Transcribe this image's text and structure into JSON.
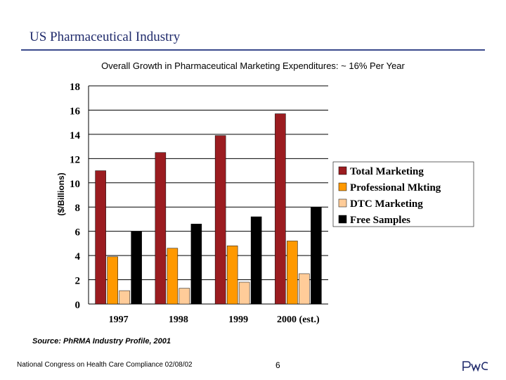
{
  "slide": {
    "title": "US Pharmaceutical Industry",
    "source": "Source:  PhRMA Industry Profile, 2001",
    "footer": "National Congress on Health Care Compliance 02/08/02",
    "page_number": "6",
    "logo": "PwC"
  },
  "colors": {
    "total_marketing": "#9b1c20",
    "professional_mkting": "#ff9900",
    "dtc_marketing": "#ffcc99",
    "free_samples": "#000000"
  },
  "chart_data": {
    "type": "bar",
    "title": "Overall Growth in Pharmaceutical Marketing Expenditures: ~ 16% Per Year",
    "ylabel": "($/Billions)",
    "xlabel": "",
    "ylim": [
      0,
      18
    ],
    "yticks": [
      0,
      2,
      4,
      6,
      8,
      10,
      12,
      14,
      16,
      18
    ],
    "grid": true,
    "legend_position": "right",
    "categories": [
      "1997",
      "1998",
      "1999",
      "2000 (est.)"
    ],
    "series": [
      {
        "name": "Total Marketing",
        "color": "#9b1c20",
        "values": [
          11.0,
          12.5,
          13.9,
          15.7
        ]
      },
      {
        "name": "Professional Mkting",
        "color": "#ff9900",
        "values": [
          3.9,
          4.6,
          4.8,
          5.2
        ]
      },
      {
        "name": "DTC Marketing",
        "color": "#ffcc99",
        "values": [
          1.1,
          1.3,
          1.8,
          2.5
        ]
      },
      {
        "name": "Free Samples",
        "color": "#000000",
        "values": [
          6.0,
          6.6,
          7.2,
          8.0
        ]
      }
    ]
  }
}
